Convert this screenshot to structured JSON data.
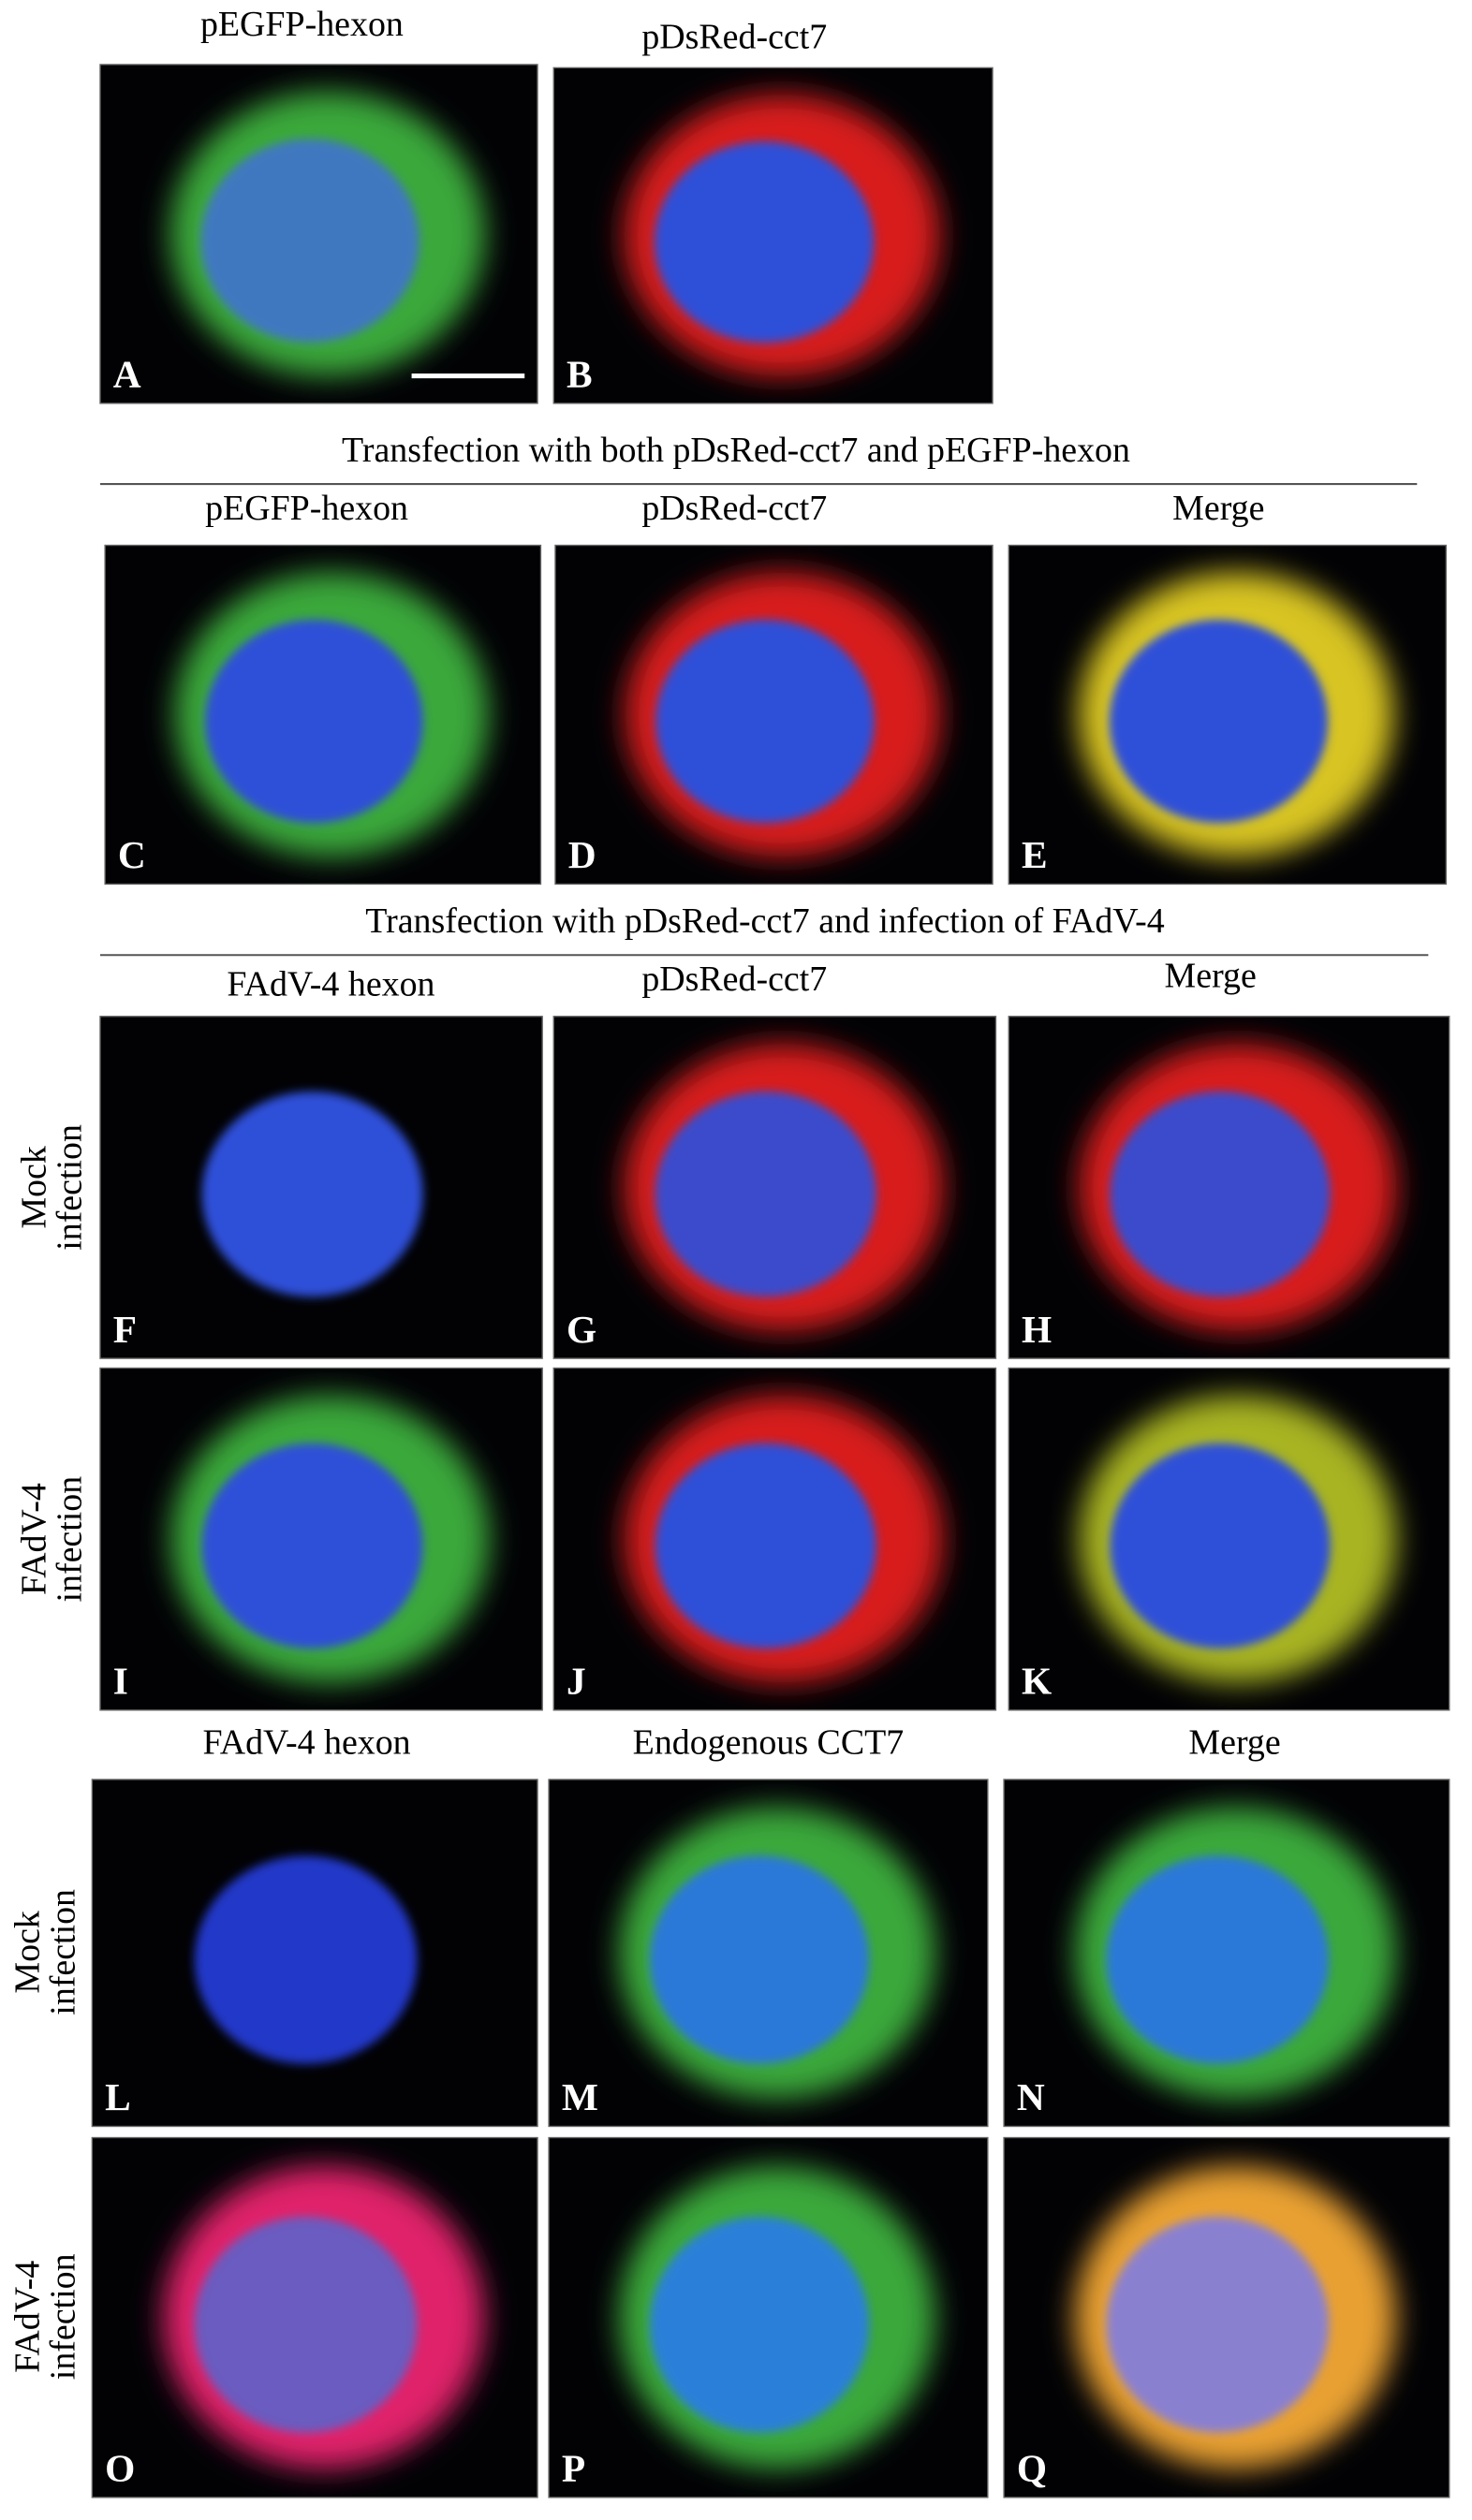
{
  "top": {
    "headers": [
      "pEGFP-hexon",
      "pDsRed-cct7"
    ],
    "panels": [
      "A",
      "B"
    ]
  },
  "cotransfection": {
    "title": "Transfection with both pDsRed-cct7 and pEGFP-hexon",
    "headers": [
      "pEGFP-hexon",
      "pDsRed-cct7",
      "Merge"
    ],
    "panels": [
      "C",
      "D",
      "E"
    ]
  },
  "infection": {
    "title": "Transfection with pDsRed-cct7 and infection of FAdV-4",
    "headers": [
      "FAdV-4 hexon",
      "pDsRed-cct7",
      "Merge"
    ],
    "rows": [
      {
        "label": [
          "Mock",
          "infection"
        ],
        "panels": [
          "F",
          "G",
          "H"
        ]
      },
      {
        "label": [
          "FAdV-4",
          "infection"
        ],
        "panels": [
          "I",
          "J",
          "K"
        ]
      }
    ]
  },
  "endogenous": {
    "headers": [
      "FAdV-4 hexon",
      "Endogenous CCT7",
      "Merge"
    ],
    "rows": [
      {
        "label": [
          "Mock",
          "infection"
        ],
        "panels": [
          "L",
          "M",
          "N"
        ]
      },
      {
        "label": [
          "FAdV-4",
          "infection"
        ],
        "panels": [
          "O",
          "P",
          "Q"
        ]
      }
    ]
  }
}
